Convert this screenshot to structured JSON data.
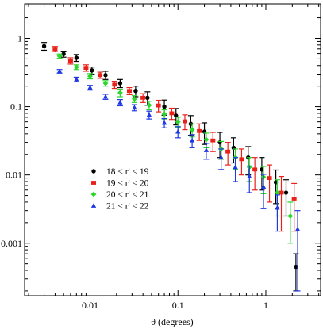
{
  "chart_data": {
    "type": "scatter",
    "title": "",
    "xlabel": "θ (degrees)",
    "ylabel": "",
    "x_scale": "log",
    "y_scale": "log",
    "xlim": [
      0.0018,
      4.2
    ],
    "ylim": [
      0.00017,
      3.2
    ],
    "x_tick_labels": [
      {
        "value": 0.01,
        "label": "0.01"
      },
      {
        "value": 0.1,
        "label": "0.1"
      },
      {
        "value": 1,
        "label": "1"
      }
    ],
    "y_tick_labels": [
      {
        "value": 1,
        "label": "1"
      },
      {
        "value": 0.1,
        "label": "0.1"
      },
      {
        "value": 0.01,
        "label": "0.01"
      },
      {
        "value": 0.001,
        "label": "0.001"
      }
    ],
    "grid": false,
    "legend_position": "lower-left",
    "series": [
      {
        "name": "18 < r' < 19",
        "color": "#000000",
        "marker": "circle",
        "points": [
          {
            "x": 0.003,
            "y": 0.77,
            "err": 0.1
          },
          {
            "x": 0.005,
            "y": 0.59,
            "err": 0.06
          },
          {
            "x": 0.007,
            "y": 0.52,
            "err": 0.06
          },
          {
            "x": 0.0105,
            "y": 0.34,
            "err": 0.04
          },
          {
            "x": 0.015,
            "y": 0.29,
            "err": 0.04
          },
          {
            "x": 0.022,
            "y": 0.22,
            "err": 0.03
          },
          {
            "x": 0.033,
            "y": 0.17,
            "err": 0.03
          },
          {
            "x": 0.045,
            "y": 0.135,
            "err": 0.03
          },
          {
            "x": 0.07,
            "y": 0.1,
            "err": 0.025
          },
          {
            "x": 0.095,
            "y": 0.074,
            "err": 0.02
          },
          {
            "x": 0.14,
            "y": 0.056,
            "err": 0.018
          },
          {
            "x": 0.2,
            "y": 0.043,
            "err": 0.015
          },
          {
            "x": 0.3,
            "y": 0.03,
            "err": 0.012
          },
          {
            "x": 0.43,
            "y": 0.025,
            "err": 0.01
          },
          {
            "x": 0.63,
            "y": 0.018,
            "err": 0.008
          },
          {
            "x": 0.9,
            "y": 0.012,
            "err": 0.006
          },
          {
            "x": 1.3,
            "y": 0.0078,
            "err": 0.004
          },
          {
            "x": 1.7,
            "y": 0.0055,
            "err": 0.003
          },
          {
            "x": 2.2,
            "y": 0.00045,
            "err": 0.00025
          }
        ]
      },
      {
        "name": "19 < r' < 20",
        "color": "#e8211b",
        "marker": "square",
        "points": [
          {
            "x": 0.004,
            "y": 0.7,
            "err": 0.06
          },
          {
            "x": 0.006,
            "y": 0.47,
            "err": 0.05
          },
          {
            "x": 0.009,
            "y": 0.37,
            "err": 0.04
          },
          {
            "x": 0.013,
            "y": 0.29,
            "err": 0.03
          },
          {
            "x": 0.019,
            "y": 0.21,
            "err": 0.025
          },
          {
            "x": 0.028,
            "y": 0.17,
            "err": 0.02
          },
          {
            "x": 0.04,
            "y": 0.135,
            "err": 0.02
          },
          {
            "x": 0.06,
            "y": 0.104,
            "err": 0.02
          },
          {
            "x": 0.085,
            "y": 0.08,
            "err": 0.015
          },
          {
            "x": 0.12,
            "y": 0.061,
            "err": 0.015
          },
          {
            "x": 0.175,
            "y": 0.044,
            "err": 0.012
          },
          {
            "x": 0.25,
            "y": 0.032,
            "err": 0.01
          },
          {
            "x": 0.37,
            "y": 0.022,
            "err": 0.008
          },
          {
            "x": 0.53,
            "y": 0.017,
            "err": 0.007
          },
          {
            "x": 0.75,
            "y": 0.012,
            "err": 0.006
          },
          {
            "x": 1.1,
            "y": 0.009,
            "err": 0.005
          },
          {
            "x": 1.5,
            "y": 0.0055,
            "err": 0.004
          },
          {
            "x": 2.1,
            "y": 0.0045,
            "err": 0.003
          }
        ]
      },
      {
        "name": "20 < r' < 21",
        "color": "#2bd62b",
        "marker": "diamond",
        "points": [
          {
            "x": 0.0045,
            "y": 0.55,
            "err": 0.04
          },
          {
            "x": 0.007,
            "y": 0.38,
            "err": 0.03
          },
          {
            "x": 0.01,
            "y": 0.28,
            "err": 0.025
          },
          {
            "x": 0.015,
            "y": 0.22,
            "err": 0.02
          },
          {
            "x": 0.022,
            "y": 0.16,
            "err": 0.02
          },
          {
            "x": 0.032,
            "y": 0.13,
            "err": 0.015
          },
          {
            "x": 0.047,
            "y": 0.105,
            "err": 0.015
          },
          {
            "x": 0.07,
            "y": 0.078,
            "err": 0.012
          },
          {
            "x": 0.1,
            "y": 0.06,
            "err": 0.01
          },
          {
            "x": 0.145,
            "y": 0.046,
            "err": 0.01
          },
          {
            "x": 0.21,
            "y": 0.033,
            "err": 0.008
          },
          {
            "x": 0.31,
            "y": 0.024,
            "err": 0.007
          },
          {
            "x": 0.45,
            "y": 0.018,
            "err": 0.006
          },
          {
            "x": 0.65,
            "y": 0.013,
            "err": 0.005
          },
          {
            "x": 0.94,
            "y": 0.0093,
            "err": 0.004
          },
          {
            "x": 1.35,
            "y": 0.0055,
            "err": 0.003
          },
          {
            "x": 1.9,
            "y": 0.0025,
            "err": 0.0015
          }
        ]
      },
      {
        "name": "21 < r' < 22",
        "color": "#1f38e3",
        "marker": "triangle",
        "points": [
          {
            "x": 0.0045,
            "y": 0.33,
            "err": 0.02
          },
          {
            "x": 0.007,
            "y": 0.25,
            "err": 0.02
          },
          {
            "x": 0.01,
            "y": 0.19,
            "err": 0.015
          },
          {
            "x": 0.015,
            "y": 0.14,
            "err": 0.012
          },
          {
            "x": 0.022,
            "y": 0.115,
            "err": 0.012
          },
          {
            "x": 0.032,
            "y": 0.097,
            "err": 0.01
          },
          {
            "x": 0.047,
            "y": 0.076,
            "err": 0.01
          },
          {
            "x": 0.07,
            "y": 0.058,
            "err": 0.009
          },
          {
            "x": 0.1,
            "y": 0.043,
            "err": 0.008
          },
          {
            "x": 0.145,
            "y": 0.032,
            "err": 0.007
          },
          {
            "x": 0.21,
            "y": 0.023,
            "err": 0.006
          },
          {
            "x": 0.31,
            "y": 0.018,
            "err": 0.006
          },
          {
            "x": 0.45,
            "y": 0.013,
            "err": 0.005
          },
          {
            "x": 0.65,
            "y": 0.0095,
            "err": 0.004
          },
          {
            "x": 0.94,
            "y": 0.0067,
            "err": 0.0035
          },
          {
            "x": 1.35,
            "y": 0.0033,
            "err": 0.0018
          },
          {
            "x": 2.3,
            "y": 0.0016,
            "err": 0.0014
          }
        ]
      }
    ]
  }
}
